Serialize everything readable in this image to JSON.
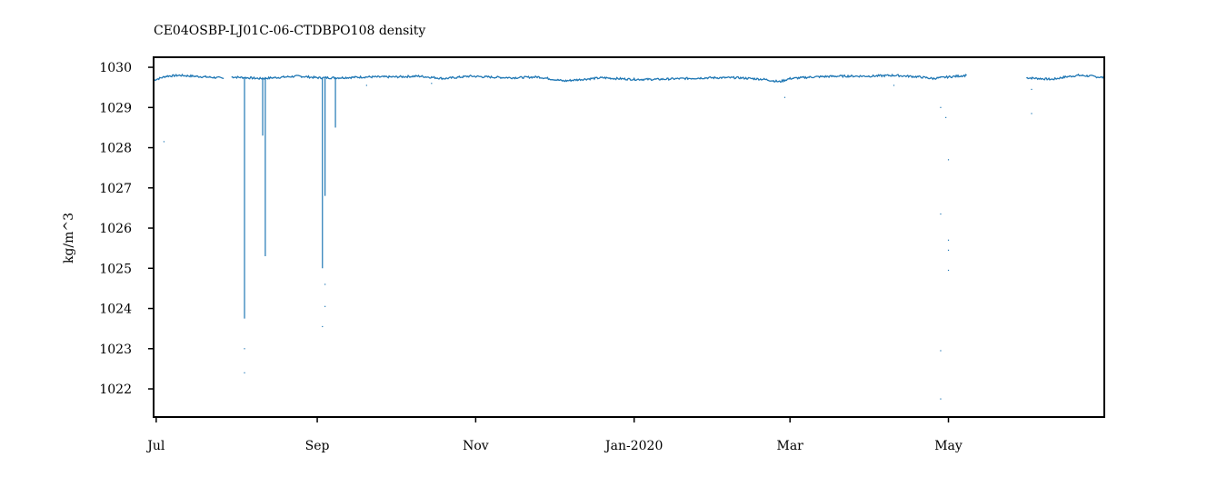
{
  "chart_data": {
    "type": "line",
    "title": "CE04OSBP-LJ01C-06-CTDBPO108 density",
    "xlabel": "",
    "ylabel": "kg/m^3",
    "ylim": [
      1021.3,
      1030.25
    ],
    "xlim": [
      "2019-06-30",
      "2020-06-30"
    ],
    "grid": false,
    "series_color": "#1f77b4",
    "y_ticks": [
      1022,
      1023,
      1024,
      1025,
      1026,
      1027,
      1028,
      1029,
      1030
    ],
    "x_ticks": [
      {
        "label": "Jul",
        "date": "2019-07-01"
      },
      {
        "label": "Sep",
        "date": "2019-09-01"
      },
      {
        "label": "Nov",
        "date": "2019-11-01"
      },
      {
        "label": "Jan-2020",
        "date": "2020-01-01"
      },
      {
        "label": "Mar",
        "date": "2020-03-01"
      },
      {
        "label": "May",
        "date": "2020-05-01"
      }
    ],
    "series": [
      {
        "segments": [
          [
            [
              "2019-06-30",
              1029.68
            ],
            [
              "2019-07-05",
              1029.78
            ],
            [
              "2019-07-10",
              1029.8
            ],
            [
              "2019-07-15",
              1029.78
            ],
            [
              "2019-07-20",
              1029.76
            ],
            [
              "2019-07-25",
              1029.74
            ],
            [
              "2019-07-27",
              1029.72
            ]
          ],
          [
            [
              "2019-07-30",
              1029.76
            ],
            [
              "2019-08-05",
              1029.74
            ],
            [
              "2019-08-10",
              1029.72
            ],
            [
              "2019-08-15",
              1029.74
            ],
            [
              "2019-08-20",
              1029.76
            ],
            [
              "2019-08-25",
              1029.78
            ],
            [
              "2019-09-01",
              1029.74
            ],
            [
              "2019-09-10",
              1029.74
            ],
            [
              "2019-09-20",
              1029.76
            ],
            [
              "2019-10-01",
              1029.76
            ],
            [
              "2019-10-10",
              1029.78
            ],
            [
              "2019-10-20",
              1029.72
            ],
            [
              "2019-10-30",
              1029.78
            ],
            [
              "2019-11-05",
              1029.76
            ],
            [
              "2019-11-15",
              1029.74
            ],
            [
              "2019-11-25",
              1029.76
            ],
            [
              "2019-12-01",
              1029.7
            ],
            [
              "2019-12-05",
              1029.66
            ],
            [
              "2019-12-12",
              1029.7
            ],
            [
              "2019-12-20",
              1029.74
            ],
            [
              "2019-12-25",
              1029.72
            ],
            [
              "2020-01-01",
              1029.7
            ],
            [
              "2020-01-10",
              1029.7
            ],
            [
              "2020-01-20",
              1029.72
            ],
            [
              "2020-01-30",
              1029.74
            ],
            [
              "2020-02-10",
              1029.74
            ],
            [
              "2020-02-20",
              1029.7
            ],
            [
              "2020-02-26",
              1029.64
            ],
            [
              "2020-03-01",
              1029.72
            ],
            [
              "2020-03-10",
              1029.76
            ],
            [
              "2020-03-20",
              1029.78
            ],
            [
              "2020-04-01",
              1029.78
            ],
            [
              "2020-04-10",
              1029.8
            ],
            [
              "2020-04-20",
              1029.76
            ],
            [
              "2020-04-25",
              1029.72
            ],
            [
              "2020-05-01",
              1029.76
            ],
            [
              "2020-05-08",
              1029.8
            ]
          ],
          [
            [
              "2020-05-31",
              1029.74
            ],
            [
              "2020-06-05",
              1029.72
            ],
            [
              "2020-06-10",
              1029.7
            ],
            [
              "2020-06-15",
              1029.76
            ],
            [
              "2020-06-20",
              1029.8
            ],
            [
              "2020-06-25",
              1029.78
            ],
            [
              "2020-06-30",
              1029.74
            ]
          ]
        ],
        "spikes": [
          {
            "date": "2019-08-04",
            "min": 1023.75
          },
          {
            "date": "2019-08-11",
            "min": 1028.3
          },
          {
            "date": "2019-08-12",
            "min": 1025.3
          },
          {
            "date": "2019-09-03",
            "min": 1025.0
          },
          {
            "date": "2019-09-04",
            "min": 1026.8
          },
          {
            "date": "2019-09-08",
            "min": 1028.5
          }
        ],
        "outliers": [
          [
            "2019-07-04",
            1028.15
          ],
          [
            "2019-08-04",
            1023.0
          ],
          [
            "2019-08-04",
            1022.4
          ],
          [
            "2019-09-04",
            1024.6
          ],
          [
            "2019-09-03",
            1023.55
          ],
          [
            "2019-09-04",
            1024.05
          ],
          [
            "2020-02-28",
            1029.25
          ],
          [
            "2020-04-28",
            1029.0
          ],
          [
            "2020-04-30",
            1028.75
          ],
          [
            "2020-05-01",
            1027.7
          ],
          [
            "2020-04-28",
            1026.35
          ],
          [
            "2020-05-01",
            1025.7
          ],
          [
            "2020-05-01",
            1025.45
          ],
          [
            "2020-05-01",
            1024.95
          ],
          [
            "2020-04-28",
            1022.95
          ],
          [
            "2020-04-28",
            1021.75
          ],
          [
            "2020-06-02",
            1028.85
          ],
          [
            "2020-06-02",
            1029.45
          ],
          [
            "2019-09-20",
            1029.55
          ],
          [
            "2019-10-15",
            1029.6
          ],
          [
            "2020-04-10",
            1029.55
          ]
        ]
      }
    ]
  }
}
